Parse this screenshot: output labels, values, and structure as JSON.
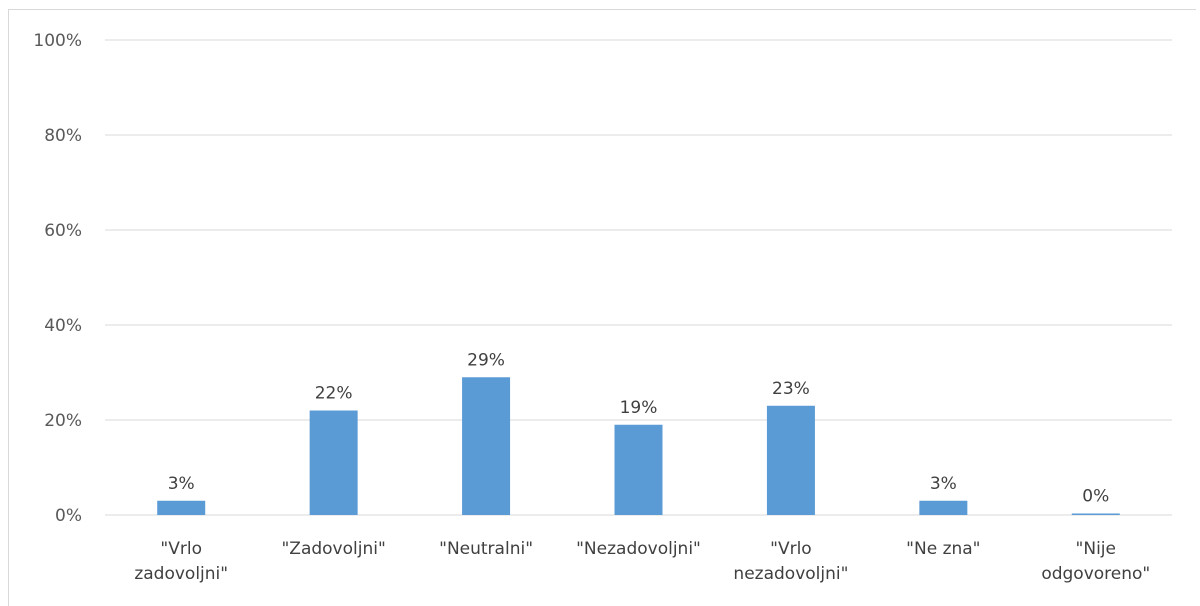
{
  "chart_data": {
    "type": "bar",
    "title": "",
    "xlabel": "",
    "ylabel": "",
    "categories": [
      [
        "\"Vrlo",
        "zadovoljni\""
      ],
      [
        "\"Zadovoljni\""
      ],
      [
        "\"Neutralni\""
      ],
      [
        "\"Nezadovoljni\""
      ],
      [
        "\"Vrlo",
        "nezadovoljni\""
      ],
      [
        "\"Ne zna\""
      ],
      [
        "\"Nije",
        "odgovoreno\""
      ]
    ],
    "values": [
      3,
      22,
      29,
      19,
      23,
      3,
      0
    ],
    "value_labels": [
      "3%",
      "22%",
      "29%",
      "19%",
      "23%",
      "3%",
      "0%"
    ],
    "ylim": [
      0,
      100
    ],
    "yticks": [
      0,
      20,
      40,
      60,
      80,
      100
    ],
    "ytick_labels": [
      "0%",
      "20%",
      "40%",
      "60%",
      "80%",
      "100%"
    ],
    "grid": true,
    "legend": "none",
    "colors": {
      "bar": "#5b9bd5",
      "grid": "#d9d9d9",
      "axis_text": "#595959",
      "label_text": "#404040"
    }
  }
}
